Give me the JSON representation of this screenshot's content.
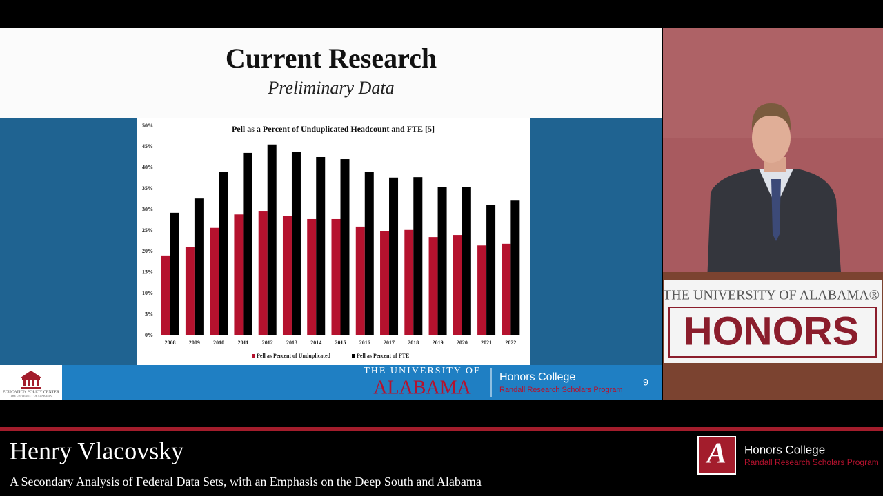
{
  "slide": {
    "title": "Current Research",
    "subtitle": "Preliminary Data",
    "page_number": "9",
    "footer": {
      "logo_text_1": "EDUCATION POLICY CENTER",
      "logo_text_2": "THE UNIVERSITY OF ALABAMA",
      "university_top": "THE UNIVERSITY OF",
      "university_bottom": "ALABAMA",
      "college": "Honors College",
      "program": "Randall Research Scholars Program"
    }
  },
  "chart_data": {
    "type": "bar",
    "title": "Pell as a Percent of Unduplicated Headcount and FTE [5]",
    "categories": [
      "2008",
      "2009",
      "2010",
      "2011",
      "2012",
      "2013",
      "2014",
      "2015",
      "2016",
      "2017",
      "2018",
      "2019",
      "2020",
      "2021",
      "2022"
    ],
    "series": [
      {
        "name": "Pell as Percent of Unduplicated",
        "color": "#b5122e",
        "values": [
          19.1,
          21.2,
          25.7,
          28.9,
          29.6,
          28.6,
          27.8,
          27.8,
          26.0,
          25.0,
          25.2,
          23.5,
          24.0,
          21.5,
          21.9
        ]
      },
      {
        "name": "Pell as Percent of FTE",
        "color": "#000000",
        "values": [
          29.3,
          32.7,
          39.0,
          43.6,
          45.6,
          43.8,
          42.6,
          42.1,
          39.1,
          37.7,
          37.8,
          35.4,
          35.4,
          31.2,
          32.2
        ]
      }
    ],
    "ylim": [
      0,
      50
    ],
    "yticks": [
      {
        "value": 0,
        "label": "0%"
      },
      {
        "value": 5,
        "label": "5%"
      },
      {
        "value": 10,
        "label": "10%"
      },
      {
        "value": 15,
        "label": "15%"
      },
      {
        "value": 20,
        "label": "20%"
      },
      {
        "value": 25,
        "label": "25%"
      },
      {
        "value": 30,
        "label": "30%"
      },
      {
        "value": 35,
        "label": "35%"
      },
      {
        "value": 40,
        "label": "40%"
      },
      {
        "value": 45,
        "label": "45%"
      },
      {
        "value": 50,
        "label": "50%"
      }
    ],
    "legend": "bottom"
  },
  "podium": {
    "line1": "THE UNIVERSITY OF ALABAMA®",
    "line2": "HONORS"
  },
  "lower_third": {
    "name": "Henry Vlacovsky",
    "subtitle": "A Secondary Analysis of Federal Data Sets, with an Emphasis on the Deep South and Alabama",
    "logo_letter": "A",
    "college": "Honors College",
    "program": "Randall Research Scholars Program"
  }
}
